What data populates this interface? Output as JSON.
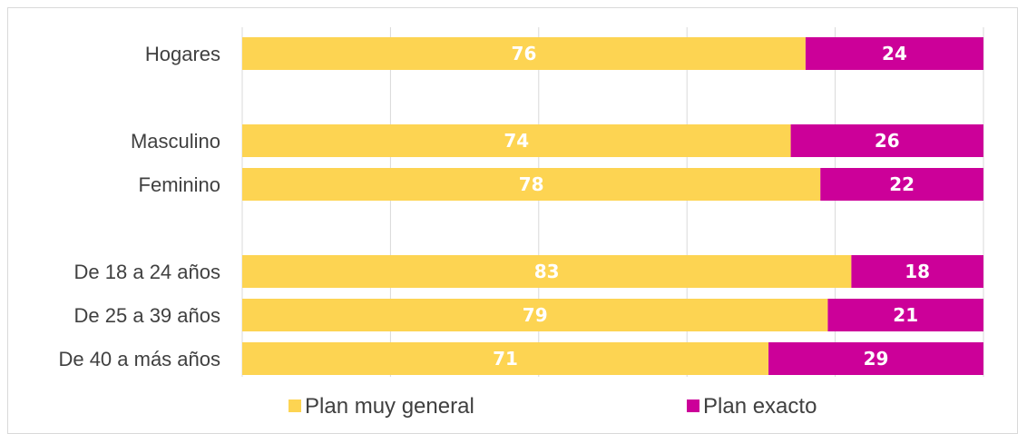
{
  "chart_data": {
    "type": "bar",
    "orientation": "horizontal",
    "stacked": true,
    "percent_stacked": true,
    "categories": [
      "Hogares",
      "Masculino",
      "Feminino",
      "De 18 a 24 años",
      "De 25 a 39 años",
      "De 40 a más años"
    ],
    "groups": [
      [
        "Hogares"
      ],
      [
        "Masculino",
        "Feminino"
      ],
      [
        "De 18 a 24 años",
        "De 25 a 39 años",
        "De 40 a más años"
      ]
    ],
    "series": [
      {
        "name": "Plan muy general",
        "color": "#FDD452",
        "values": [
          76,
          74,
          78,
          83,
          79,
          71
        ]
      },
      {
        "name": "Plan exacto",
        "color": "#CC0099",
        "values": [
          24,
          26,
          22,
          18,
          21,
          29
        ]
      }
    ],
    "xlim": [
      0,
      100
    ],
    "grid": true,
    "legend_position": "bottom"
  }
}
